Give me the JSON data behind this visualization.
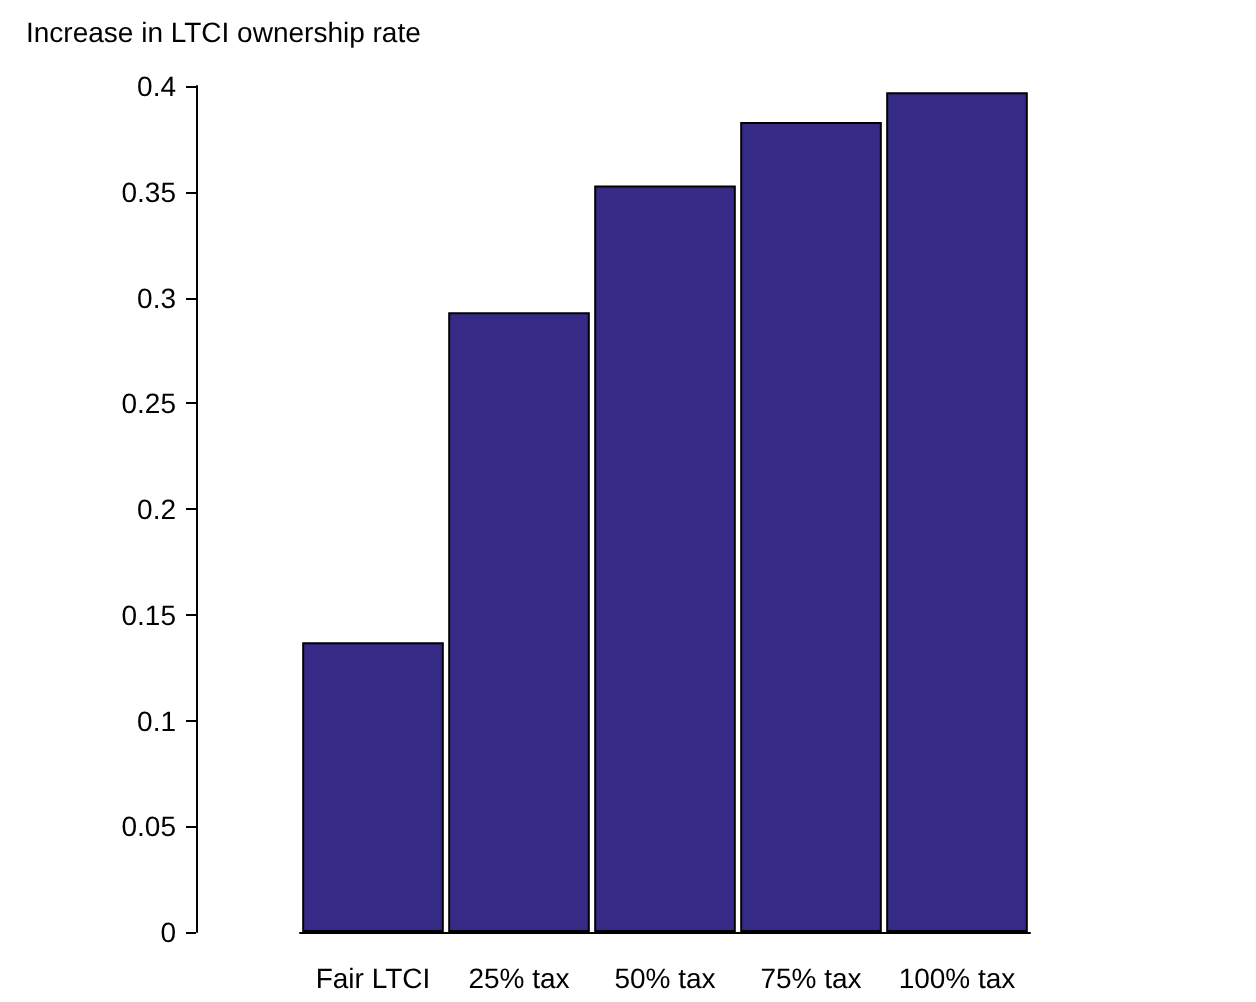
{
  "chart_data": {
    "type": "bar",
    "ylabel": "Increase in LTCI ownership rate",
    "categories": [
      "Fair LTCI",
      "25% tax",
      "50% tax",
      "75% tax",
      "100% tax"
    ],
    "values": [
      0.137,
      0.293,
      0.353,
      0.383,
      0.397
    ],
    "color": "#352a86",
    "ylim": [
      0,
      0.4
    ],
    "yticks": [
      0,
      0.05,
      0.1,
      0.15,
      0.2,
      0.25,
      0.3,
      0.35,
      0.4
    ],
    "grid": false
  }
}
